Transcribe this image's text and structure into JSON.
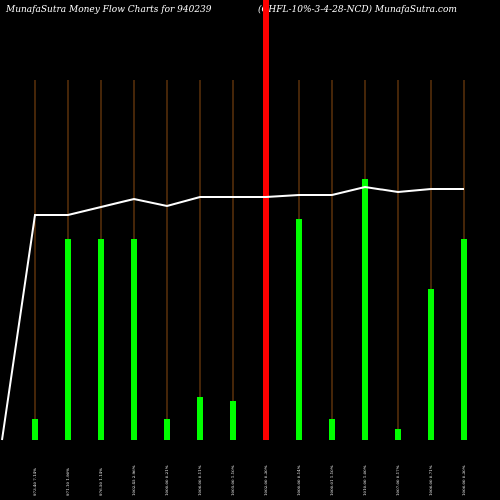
{
  "chart_data": {
    "type": "bar-line",
    "title": "MunafaSutra  Money Flow  Charts for 940239",
    "subtitle": "(CHFL-10%-3-4-28-NCD) MunafaSutra.com",
    "categories": [
      null,
      "973.40 7.14%",
      "971.10 1.90%",
      "976.50 1.14%",
      "1002.45 2.96%",
      "1000.00 0.21%",
      "1006.00 0.11%",
      "1005.00 1.10%",
      "1002.00 0.30%",
      "1000.00 0.14%",
      "1000.01 1.10%",
      "1010.00 1.00%",
      "1007.00 0.17%",
      "1006.00 0.71%",
      "1006.00 0.30%"
    ],
    "values": [
      null,
      21,
      201,
      201,
      201,
      21,
      43,
      39,
      440,
      221,
      21,
      261,
      11,
      151,
      201
    ],
    "colors": [
      "#00ff00",
      "#00ff00",
      "#00ff00",
      "#00ff00",
      "#00ff00",
      "#00ff00",
      "#00ff00",
      "#00ff00",
      "#ff0000",
      "#00ff00",
      "#00ff00",
      "#00ff00",
      "#00ff00",
      "#00ff00",
      "#00ff00"
    ],
    "line_values": [
      0,
      225,
      225,
      233,
      241,
      234,
      243,
      243,
      243,
      245,
      245,
      253,
      248,
      251,
      251
    ],
    "line_color": "#ffffff",
    "ylim": [
      0,
      440
    ]
  }
}
